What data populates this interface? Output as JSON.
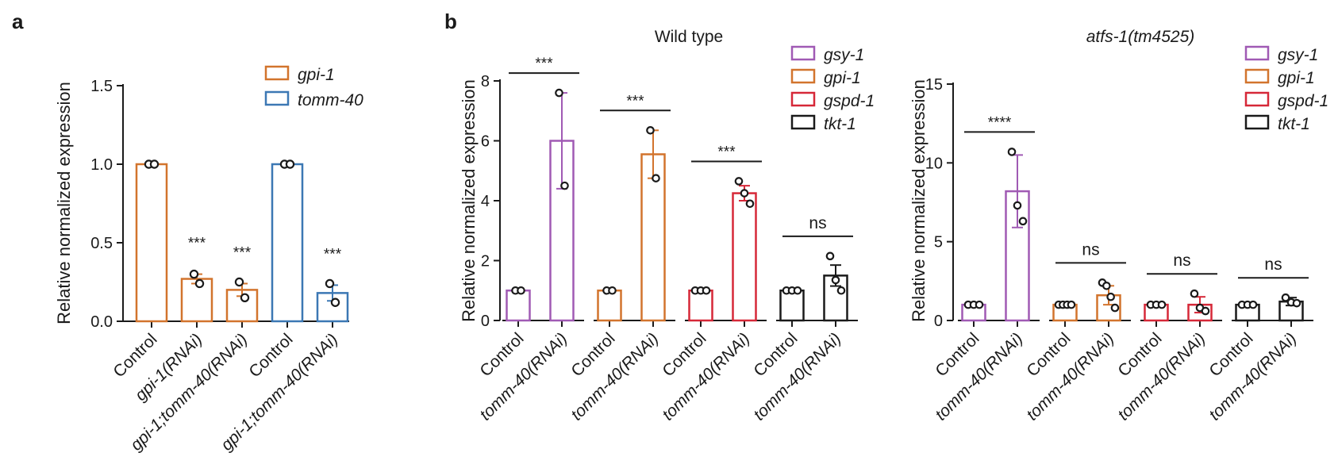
{
  "colors": {
    "gsy1": "#a05ab4",
    "gpi1": "#d2742d",
    "gspd1": "#d62838",
    "tkt1": "#1a1a1a",
    "tomm40": "#3c78b4"
  },
  "panels": {
    "a": {
      "letter": "a"
    },
    "b": {
      "letter": "b"
    }
  },
  "chart_data": [
    {
      "id": "a",
      "type": "bar",
      "title": "",
      "ylabel": "Relative normalized expression",
      "ylim": [
        0,
        1.5
      ],
      "yticks": [
        "0.0",
        "0.5",
        "1.0",
        "1.5"
      ],
      "legend": [
        {
          "label": "gpi-1",
          "color": "#d2742d"
        },
        {
          "label": "tomm-40",
          "color": "#3c78b4"
        }
      ],
      "bars": [
        {
          "label": "Control",
          "italic": false,
          "series": "gpi-1",
          "color": "#d2742d",
          "value": 1.0,
          "err": 0,
          "points": [
            1.0,
            1.0
          ],
          "sig": ""
        },
        {
          "label": "gpi-1(RNAi)",
          "italic": true,
          "series": "gpi-1",
          "color": "#d2742d",
          "value": 0.27,
          "err": 0.03,
          "points": [
            0.3,
            0.24
          ],
          "sig": "***"
        },
        {
          "label": "gpi-1;tomm-40(RNAi)",
          "italic": true,
          "series": "gpi-1",
          "color": "#d2742d",
          "value": 0.2,
          "err": 0.04,
          "points": [
            0.25,
            0.15
          ],
          "sig": "***"
        },
        {
          "label": "Control",
          "italic": false,
          "series": "tomm-40",
          "color": "#3c78b4",
          "value": 1.0,
          "err": 0,
          "points": [
            1.0,
            1.0
          ],
          "sig": ""
        },
        {
          "label": "gpi-1;tomm-40(RNAi)",
          "italic": true,
          "series": "tomm-40",
          "color": "#3c78b4",
          "value": 0.18,
          "err": 0.05,
          "points": [
            0.24,
            0.12
          ],
          "sig": "***"
        }
      ]
    },
    {
      "id": "b1",
      "type": "bar",
      "title": "Wild type",
      "title_italic": false,
      "ylabel": "Relative normalized expression",
      "ylim": [
        0,
        8
      ],
      "yticks": [
        "0",
        "2",
        "4",
        "6",
        "8"
      ],
      "legend": [
        {
          "label": "gsy-1",
          "color": "#a05ab4"
        },
        {
          "label": "gpi-1",
          "color": "#d2742d"
        },
        {
          "label": "gspd-1",
          "color": "#d62838"
        },
        {
          "label": "tkt-1",
          "color": "#1a1a1a"
        }
      ],
      "groups": [
        {
          "series": "gsy-1",
          "color": "#a05ab4",
          "sig": "***",
          "bars": [
            {
              "label": "Control",
              "italic": false,
              "value": 1.0,
              "err": 0,
              "points": [
                1.0,
                1.0
              ]
            },
            {
              "label": "tomm-40(RNAi)",
              "italic": true,
              "value": 6.0,
              "err": 1.6,
              "points": [
                7.6,
                4.5
              ]
            }
          ]
        },
        {
          "series": "gpi-1",
          "color": "#d2742d",
          "sig": "***",
          "bars": [
            {
              "label": "Control",
              "italic": false,
              "value": 1.0,
              "err": 0,
              "points": [
                1.0,
                1.0
              ]
            },
            {
              "label": "tomm-40(RNAi)",
              "italic": true,
              "value": 5.55,
              "err": 0.8,
              "points": [
                6.35,
                4.75
              ]
            }
          ]
        },
        {
          "series": "gspd-1",
          "color": "#d62838",
          "sig": "***",
          "bars": [
            {
              "label": "Control",
              "italic": false,
              "value": 1.0,
              "err": 0,
              "points": [
                1.0,
                1.0,
                1.0
              ]
            },
            {
              "label": "tomm-40(RNAi)",
              "italic": true,
              "value": 4.25,
              "err": 0.25,
              "points": [
                4.65,
                4.25,
                3.9
              ]
            }
          ]
        },
        {
          "series": "tkt-1",
          "color": "#1a1a1a",
          "sig": "ns",
          "bars": [
            {
              "label": "Control",
              "italic": false,
              "value": 1.0,
              "err": 0,
              "points": [
                1.0,
                1.0,
                1.0
              ]
            },
            {
              "label": "tomm-40(RNAi)",
              "italic": true,
              "value": 1.5,
              "err": 0.35,
              "points": [
                2.15,
                1.35,
                1.0
              ]
            }
          ]
        }
      ]
    },
    {
      "id": "b2",
      "type": "bar",
      "title": "atfs-1(tm4525)",
      "title_italic": true,
      "ylabel": "Relative normalized expression",
      "ylim": [
        0,
        15
      ],
      "yticks": [
        "0",
        "5",
        "10",
        "15"
      ],
      "legend": [
        {
          "label": "gsy-1",
          "color": "#a05ab4"
        },
        {
          "label": "gpi-1",
          "color": "#d2742d"
        },
        {
          "label": "gspd-1",
          "color": "#d62838"
        },
        {
          "label": "tkt-1",
          "color": "#1a1a1a"
        }
      ],
      "groups": [
        {
          "series": "gsy-1",
          "color": "#a05ab4",
          "sig": "****",
          "bars": [
            {
              "label": "Control",
              "italic": false,
              "value": 1.0,
              "err": 0,
              "points": [
                1.0,
                1.0,
                1.0
              ]
            },
            {
              "label": "tomm-40(RNAi)",
              "italic": true,
              "value": 8.2,
              "err": 2.3,
              "points": [
                10.7,
                7.3,
                6.3
              ]
            }
          ]
        },
        {
          "series": "gpi-1",
          "color": "#d2742d",
          "sig": "ns",
          "bars": [
            {
              "label": "Control",
              "italic": false,
              "value": 1.0,
              "err": 0,
              "points": [
                1.0,
                1.0,
                1.0,
                1.0
              ]
            },
            {
              "label": "tomm-40(RNAi)",
              "italic": true,
              "value": 1.6,
              "err": 0.6,
              "points": [
                2.4,
                2.2,
                1.5,
                0.8
              ]
            }
          ]
        },
        {
          "series": "gspd-1",
          "color": "#d62838",
          "sig": "ns",
          "bars": [
            {
              "label": "Control",
              "italic": false,
              "value": 1.0,
              "err": 0,
              "points": [
                1.0,
                1.0,
                1.0
              ]
            },
            {
              "label": "tomm-40(RNAi)",
              "italic": true,
              "value": 1.0,
              "err": 0.5,
              "points": [
                1.7,
                0.8,
                0.6
              ]
            }
          ]
        },
        {
          "series": "tkt-1",
          "color": "#1a1a1a",
          "sig": "ns",
          "bars": [
            {
              "label": "Control",
              "italic": false,
              "value": 1.0,
              "err": 0,
              "points": [
                1.0,
                1.0,
                1.0
              ]
            },
            {
              "label": "tomm-40(RNAi)",
              "italic": true,
              "value": 1.2,
              "err": 0.25,
              "points": [
                1.45,
                1.15,
                1.1
              ]
            }
          ]
        }
      ]
    }
  ]
}
